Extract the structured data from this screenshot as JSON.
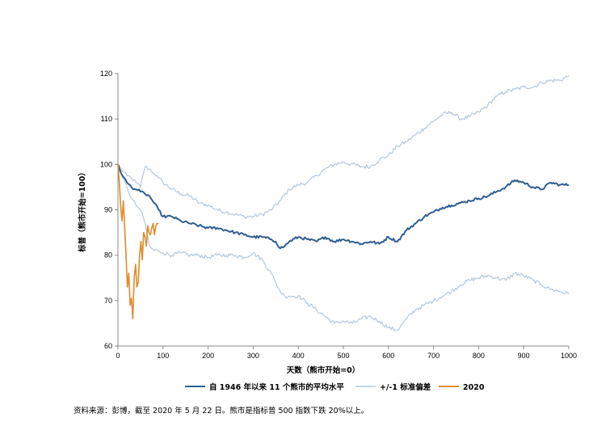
{
  "chart_data": {
    "type": "line",
    "title": "",
    "xlabel": "天数（熊市开始=0）",
    "ylabel": "标普（熊市开始=100）",
    "xlim": [
      0,
      1000
    ],
    "ylim": [
      60,
      120
    ],
    "xticks": [
      0,
      100,
      200,
      300,
      400,
      500,
      600,
      700,
      800,
      900,
      1000
    ],
    "yticks": [
      60,
      70,
      80,
      90,
      100,
      110,
      120
    ],
    "grid": false,
    "legend_position": "bottom",
    "series": [
      {
        "name": "自 1946 年以来 11 个熊市的平均水平",
        "color": "#2e5f93",
        "width": 2,
        "x": [
          0,
          10,
          20,
          30,
          40,
          50,
          60,
          70,
          80,
          90,
          100,
          120,
          140,
          160,
          180,
          200,
          220,
          240,
          260,
          280,
          300,
          320,
          340,
          350,
          360,
          370,
          380,
          400,
          420,
          440,
          460,
          480,
          500,
          520,
          540,
          560,
          580,
          600,
          620,
          640,
          660,
          680,
          700,
          720,
          740,
          760,
          780,
          800,
          820,
          840,
          860,
          880,
          900,
          920,
          940,
          960,
          980,
          1000
        ],
        "y": [
          100,
          97.5,
          96,
          95,
          94.5,
          94,
          93.5,
          93,
          91.5,
          90,
          88.5,
          88.5,
          87.5,
          87,
          86.5,
          86,
          86,
          85.5,
          85,
          84.5,
          84,
          84,
          83.5,
          83,
          81.5,
          82,
          83,
          84,
          83.5,
          83,
          84,
          83,
          83.5,
          83,
          82.5,
          83,
          82.5,
          84,
          83,
          85.5,
          87,
          88.5,
          89.5,
          90.5,
          91,
          91.5,
          92,
          92.5,
          93,
          94,
          95,
          96.5,
          96,
          95,
          94.5,
          96,
          95.5,
          95.5
        ]
      },
      {
        "name": "+/-1 标准偏差",
        "color": "#b4c7dc",
        "width": 1.2,
        "x": [
          0,
          10,
          20,
          30,
          40,
          50,
          55,
          60,
          70,
          80,
          90,
          100,
          120,
          140,
          160,
          180,
          200,
          220,
          240,
          260,
          280,
          300,
          320,
          340,
          360,
          380,
          400,
          420,
          440,
          460,
          480,
          500,
          520,
          540,
          560,
          580,
          600,
          620,
          640,
          660,
          680,
          700,
          720,
          740,
          760,
          780,
          800,
          820,
          840,
          860,
          880,
          900,
          920,
          940,
          960,
          980,
          1000
        ],
        "y": [
          100,
          98.5,
          97.5,
          97,
          96,
          95,
          97.5,
          99.5,
          99,
          98,
          97,
          96,
          94.5,
          93.5,
          93,
          91.5,
          91,
          90,
          89.5,
          89,
          88.5,
          88.5,
          89,
          90,
          92,
          94.5,
          95.5,
          96,
          97.5,
          99,
          100,
          100.5,
          100,
          99.5,
          99.5,
          101,
          102,
          104,
          105,
          106.5,
          108,
          109.5,
          111,
          111.5,
          110,
          110.5,
          111.5,
          113,
          115,
          116,
          116.5,
          117,
          117,
          118,
          118.5,
          118.5,
          119.5
        ]
      },
      {
        "name": "+/-1 标准偏差 (下限)",
        "color": "#b4c7dc",
        "width": 1.2,
        "x": [
          0,
          10,
          20,
          30,
          40,
          50,
          60,
          70,
          80,
          90,
          100,
          120,
          140,
          160,
          180,
          200,
          220,
          240,
          260,
          280,
          300,
          320,
          340,
          350,
          360,
          370,
          380,
          400,
          420,
          440,
          460,
          480,
          500,
          520,
          540,
          560,
          580,
          600,
          620,
          640,
          660,
          680,
          700,
          720,
          740,
          760,
          780,
          800,
          820,
          840,
          860,
          880,
          900,
          920,
          940,
          960,
          980,
          1000
        ],
        "y": [
          100,
          97,
          95,
          92.5,
          91,
          90,
          87,
          82,
          81,
          81,
          80.5,
          80,
          80.5,
          80,
          80,
          79.5,
          80,
          80,
          80,
          79.5,
          80.5,
          79,
          76,
          74,
          72,
          71,
          71,
          71,
          69.5,
          68,
          66.5,
          65,
          65.5,
          65,
          66,
          66.5,
          65.5,
          64,
          63.5,
          66,
          68,
          69,
          70,
          71,
          72,
          73.5,
          74.5,
          75,
          75.5,
          75,
          74.5,
          76,
          75.5,
          74.5,
          73.5,
          72.5,
          72,
          71.5
        ]
      },
      {
        "name": "2020",
        "color": "#e08b2a",
        "width": 1.6,
        "x": [
          0,
          3,
          6,
          9,
          12,
          15,
          18,
          21,
          24,
          27,
          30,
          33,
          36,
          39,
          42,
          45,
          48,
          51,
          54,
          57,
          60,
          63,
          66,
          69,
          72,
          75,
          78,
          81,
          84,
          87,
          90
        ],
        "y": [
          100,
          96,
          91,
          87.5,
          92,
          86,
          80,
          73,
          76,
          69,
          70.5,
          66,
          75,
          78,
          73,
          74,
          80,
          83,
          79,
          85,
          84,
          82,
          86.5,
          85,
          84.5,
          86,
          87,
          84.5,
          86.5,
          87,
          87
        ]
      }
    ],
    "legend": [
      {
        "label": "自 1946 年以来 11 个熊市的平均水平",
        "color": "#2e5f93"
      },
      {
        "label": "+/-1 标准偏差",
        "color": "#b4c7dc"
      },
      {
        "label": "2020",
        "color": "#e08b2a"
      }
    ]
  },
  "source_note": "资料来源：彭博，截至 2020 年 5 月 22 日。熊市是指标普 500 指数下跌 20%以上。"
}
